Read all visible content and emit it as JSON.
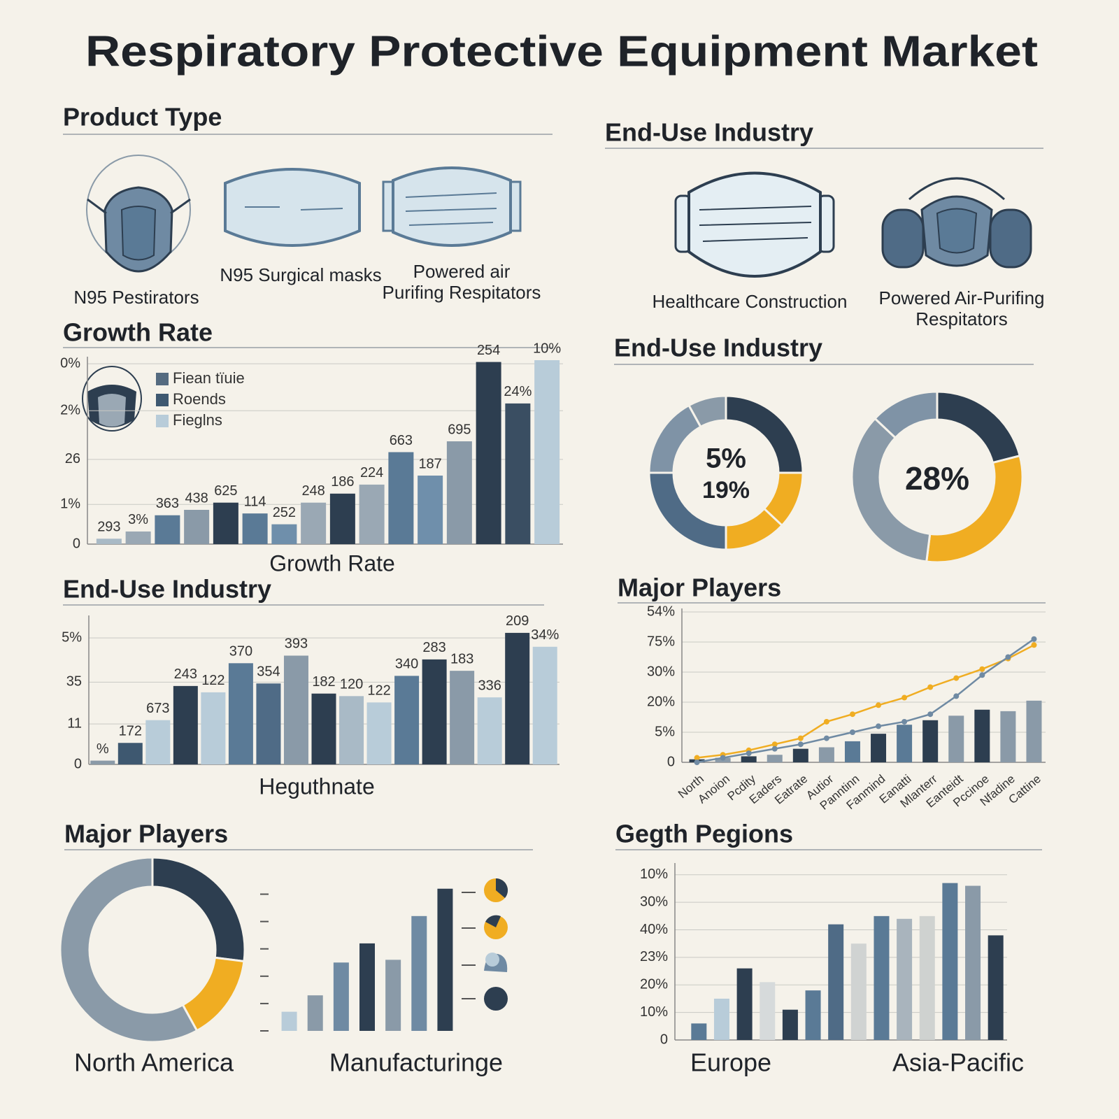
{
  "title": "Respiratory Protective Equipment Market",
  "product_type": {
    "title": "Product Type",
    "items": [
      {
        "label": [
          "N95 Pestirators"
        ]
      },
      {
        "label": [
          "N95 Surgical masks"
        ]
      },
      {
        "label": [
          "Powered air",
          "Purifing Respitators"
        ]
      }
    ]
  },
  "end_use_icons": {
    "title": "End-Use Industry",
    "items": [
      {
        "label": [
          "Healthcare Construction"
        ]
      },
      {
        "label": [
          "Powered Air-Purifing",
          "Respitators"
        ]
      }
    ]
  },
  "chart_data": [
    {
      "type": "bar",
      "title": "Growth Rate",
      "x_label": "Growth Rate",
      "values": [
        3,
        7,
        16,
        19,
        23,
        17,
        11,
        23,
        28,
        33,
        51,
        38,
        57,
        101,
        78,
        102
      ],
      "value_labels": [
        "293",
        "3%",
        "363",
        "438",
        "625",
        "114",
        "252",
        "248",
        "186",
        "224",
        "663",
        "187",
        "695",
        "254",
        "24%",
        "10%"
      ],
      "colors": [
        "#a9bac6",
        "#9aa8b4",
        "#5a7a96",
        "#8a9aa8",
        "#2d3e50",
        "#5a7a96",
        "#6f8fab",
        "#9aa8b4",
        "#2d3e50",
        "#9aa8b4",
        "#5a7a96",
        "#6f8fab",
        "#8a9aa8",
        "#2d3e50",
        "#3a4e62",
        "#b8ccd9"
      ],
      "ylim": [
        0,
        102
      ],
      "yticks": [
        0,
        {
          "value": 22,
          "label": "1%"
        },
        {
          "value": 47,
          "label": "26"
        },
        {
          "value": 74,
          "label": "2%"
        },
        {
          "value": 100,
          "label": "0%"
        }
      ],
      "grid": true,
      "legend": {
        "position": "upper left",
        "entries": [
          {
            "name": "Fiean tïuie",
            "color": "#556b80"
          },
          {
            "name": "Roends",
            "color": "#3e5870"
          },
          {
            "name": "Fieglns",
            "color": "#b8ccd9"
          }
        ]
      }
    },
    {
      "type": "donut",
      "title": "End-Use Industry",
      "center_labels": [
        "5%",
        "19%"
      ],
      "values": [
        25,
        12,
        13,
        25,
        17,
        8
      ],
      "colors": [
        "#2d3e50",
        "#f0ad22",
        "#f0ad22",
        "#4f6b86",
        "#7f93a6",
        "#8a9aa8"
      ]
    },
    {
      "type": "donut",
      "center_labels": [
        "28%"
      ],
      "values": [
        21,
        31,
        35,
        13
      ],
      "colors": [
        "#2d3e50",
        "#f0ad22",
        "#8a9aa8",
        "#7f93a6"
      ]
    },
    {
      "type": "bar",
      "title": "End-Use Industry",
      "x_label": "Heguthnate",
      "values": [
        3,
        17,
        35,
        62,
        57,
        80,
        64,
        86,
        56,
        54,
        49,
        70,
        83,
        74,
        53,
        104,
        93
      ],
      "value_labels": [
        "%",
        "172",
        "673",
        "243",
        "122",
        "370",
        "354",
        "393",
        "182",
        "120",
        "122",
        "340",
        "283",
        "183",
        "336",
        "209",
        "34%"
      ],
      "colors": [
        "#8a9aa8",
        "#3e5870",
        "#b8ccd9",
        "#2d3e50",
        "#b8ccd9",
        "#5a7a96",
        "#4f6b86",
        "#8a9aa8",
        "#2d3e50",
        "#a9bac6",
        "#b8ccd9",
        "#5a7a96",
        "#2d3e50",
        "#8a9aa8",
        "#b8ccd9",
        "#2d3e50",
        "#b8ccd9"
      ],
      "ylim": [
        0,
        115
      ],
      "yticks": [
        0,
        {
          "value": 32,
          "label": "11"
        },
        {
          "value": 65,
          "label": "35"
        },
        {
          "value": 100,
          "label": "5%"
        }
      ],
      "grid": true
    },
    {
      "type": "bar",
      "title": "Major Players",
      "categories": [
        "North",
        "Anoion",
        "Pcdity",
        "Eaders",
        "Eatrate",
        "Autior",
        "Panntinn",
        "Fanmind",
        "Eanatti",
        "Mlanterr",
        "Eanteidt",
        "Pccinoe",
        "Nfadine",
        "Cattine"
      ],
      "series": [
        {
          "type": "bar",
          "values": [
            2,
            3,
            4,
            5,
            9,
            10,
            14,
            19,
            25,
            28,
            31,
            35,
            34,
            41
          ],
          "colors": [
            "#2d3e50",
            "#8a9aa8",
            "#2d3e50",
            "#8a9aa8",
            "#2d3e50",
            "#8a9aa8",
            "#5a7a96",
            "#2d3e50",
            "#5a7a96",
            "#2d3e50",
            "#8a9aa8",
            "#2d3e50",
            "#8a9aa8",
            "#8a9aa8"
          ]
        },
        {
          "type": "line",
          "color": "#f0ad22",
          "values": [
            3,
            5,
            8,
            12,
            16,
            27,
            32,
            38,
            43,
            50,
            56,
            62,
            69,
            78
          ]
        },
        {
          "type": "line",
          "color": "#6f8aa3",
          "values": [
            0,
            3,
            6,
            9,
            12,
            16,
            20,
            24,
            27,
            32,
            44,
            58,
            70,
            82
          ]
        }
      ],
      "ylim": [
        0,
        100
      ],
      "yticks": [
        0,
        {
          "value": 20,
          "label": "5%"
        },
        {
          "value": 40,
          "label": "20%"
        },
        {
          "value": 60,
          "label": "30%"
        },
        {
          "value": 80,
          "label": "75%"
        },
        {
          "value": 100,
          "label": "54%"
        }
      ],
      "grid": true
    },
    {
      "type": "donut",
      "title": "Major Players",
      "label": "North America",
      "values": [
        27,
        15,
        58
      ],
      "colors": [
        "#2d3e50",
        "#f0ad22",
        "#8a9aa8"
      ]
    },
    {
      "type": "bar",
      "label": "Manufacturinge",
      "values": [
        0.7,
        1.3,
        2.5,
        3.2,
        2.6,
        4.2,
        5.2
      ],
      "colors": [
        "#b8ccd9",
        "#8a9aa8",
        "#6f8aa3",
        "#2d3e50",
        "#8a9aa8",
        "#6f8aa3",
        "#2d3e50"
      ],
      "ylim": [
        0,
        5.5
      ],
      "yticks": [
        0,
        1,
        2,
        3,
        4,
        5
      ]
    },
    {
      "type": "bar",
      "title": "Gegth Pegions",
      "annotations": [
        "Europe",
        "Asia-Pacific"
      ],
      "values": [
        6,
        15,
        26,
        21,
        11,
        18,
        42,
        35,
        45,
        44,
        45,
        57,
        56,
        38
      ],
      "colors": [
        "#5a7a96",
        "#b8ccd9",
        "#2d3e50",
        "#d6dadb",
        "#2d3e50",
        "#5a7a96",
        "#4f6b86",
        "#d0d3d2",
        "#5a7a96",
        "#a9b4bd",
        "#cfd2d0",
        "#5a7a96",
        "#8a9aa8",
        "#2d3e50"
      ],
      "ylim": [
        0,
        63
      ],
      "yticks": [
        0,
        {
          "value": 10,
          "label": "10%"
        },
        {
          "value": 20,
          "label": "20%"
        },
        {
          "value": 30,
          "label": "23%"
        },
        {
          "value": 40,
          "label": "40%"
        },
        {
          "value": 50,
          "label": "30%"
        },
        {
          "value": 60,
          "label": "10%"
        }
      ],
      "grid": true
    }
  ]
}
